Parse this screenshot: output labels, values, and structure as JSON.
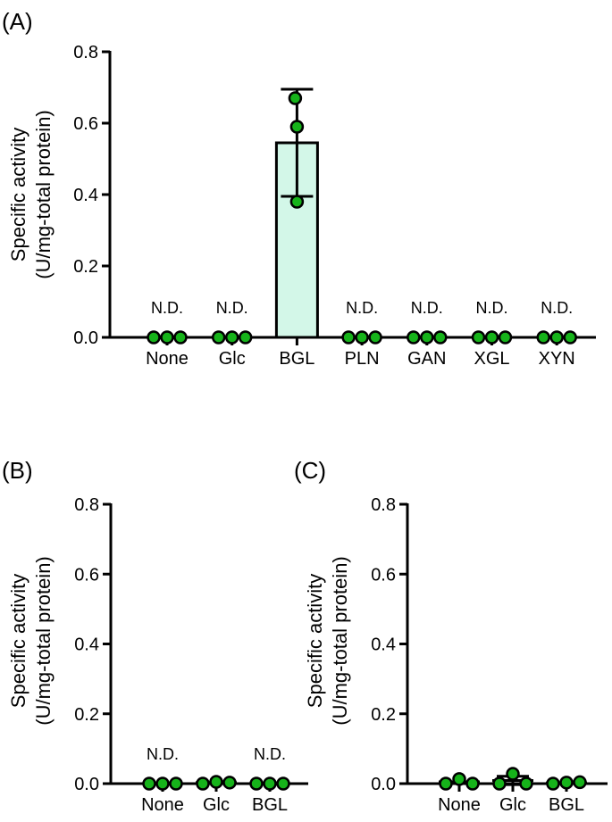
{
  "colors": {
    "bar_fill": "#d3f7e8",
    "point_fill": "#16b31a",
    "stroke": "#000000"
  },
  "chart_data": [
    {
      "panel_label": "(A)",
      "type": "bar",
      "ylabel_lines": [
        "Specific activity",
        "(U/mg-total protein)"
      ],
      "ylim": [
        0,
        0.8
      ],
      "yticks": [
        "0.0",
        "0.2",
        "0.4",
        "0.6",
        "0.8"
      ],
      "grid": false,
      "categories": [
        "None",
        "Glc",
        "BGL",
        "PLN",
        "GAN",
        "XGL",
        "XYN"
      ],
      "means": [
        0,
        0,
        0.545,
        0,
        0,
        0,
        0
      ],
      "sd": [
        0,
        0,
        0.15,
        0,
        0,
        0,
        0
      ],
      "replicates": [
        [
          0,
          0,
          0
        ],
        [
          0,
          0,
          0
        ],
        [
          0.38,
          0.59,
          0.67
        ],
        [
          0,
          0,
          0
        ],
        [
          0,
          0,
          0
        ],
        [
          0,
          0,
          0
        ],
        [
          0,
          0,
          0
        ]
      ],
      "annotations": [
        "N.D.",
        "N.D.",
        "",
        "N.D.",
        "N.D.",
        "N.D.",
        "N.D."
      ]
    },
    {
      "panel_label": "(B)",
      "type": "bar",
      "ylabel_lines": [
        "Specific activity",
        "(U/mg-total protein)"
      ],
      "ylim": [
        0,
        0.8
      ],
      "yticks": [
        "0.0",
        "0.2",
        "0.4",
        "0.6",
        "0.8"
      ],
      "grid": false,
      "categories": [
        "None",
        "Glc",
        "BGL"
      ],
      "means": [
        0,
        0.003,
        0
      ],
      "sd": [
        0,
        0,
        0
      ],
      "replicates": [
        [
          0,
          0,
          0
        ],
        [
          0,
          0.005,
          0.003
        ],
        [
          0,
          0,
          0
        ]
      ],
      "annotations": [
        "N.D.",
        "",
        "N.D."
      ]
    },
    {
      "panel_label": "(C)",
      "type": "bar",
      "ylabel_lines": [
        "Specific activity",
        "(U/mg-total protein)"
      ],
      "ylim": [
        0,
        0.8
      ],
      "yticks": [
        "0.0",
        "0.2",
        "0.4",
        "0.6",
        "0.8"
      ],
      "grid": false,
      "categories": [
        "None",
        "Glc",
        "BGL"
      ],
      "means": [
        0.005,
        0.009,
        0.002
      ],
      "sd": [
        0,
        0.012,
        0
      ],
      "replicates": [
        [
          0,
          0.013,
          0
        ],
        [
          0,
          0.028,
          0
        ],
        [
          0,
          0.003,
          0.004
        ]
      ],
      "annotations": [
        "",
        "",
        ""
      ]
    }
  ]
}
